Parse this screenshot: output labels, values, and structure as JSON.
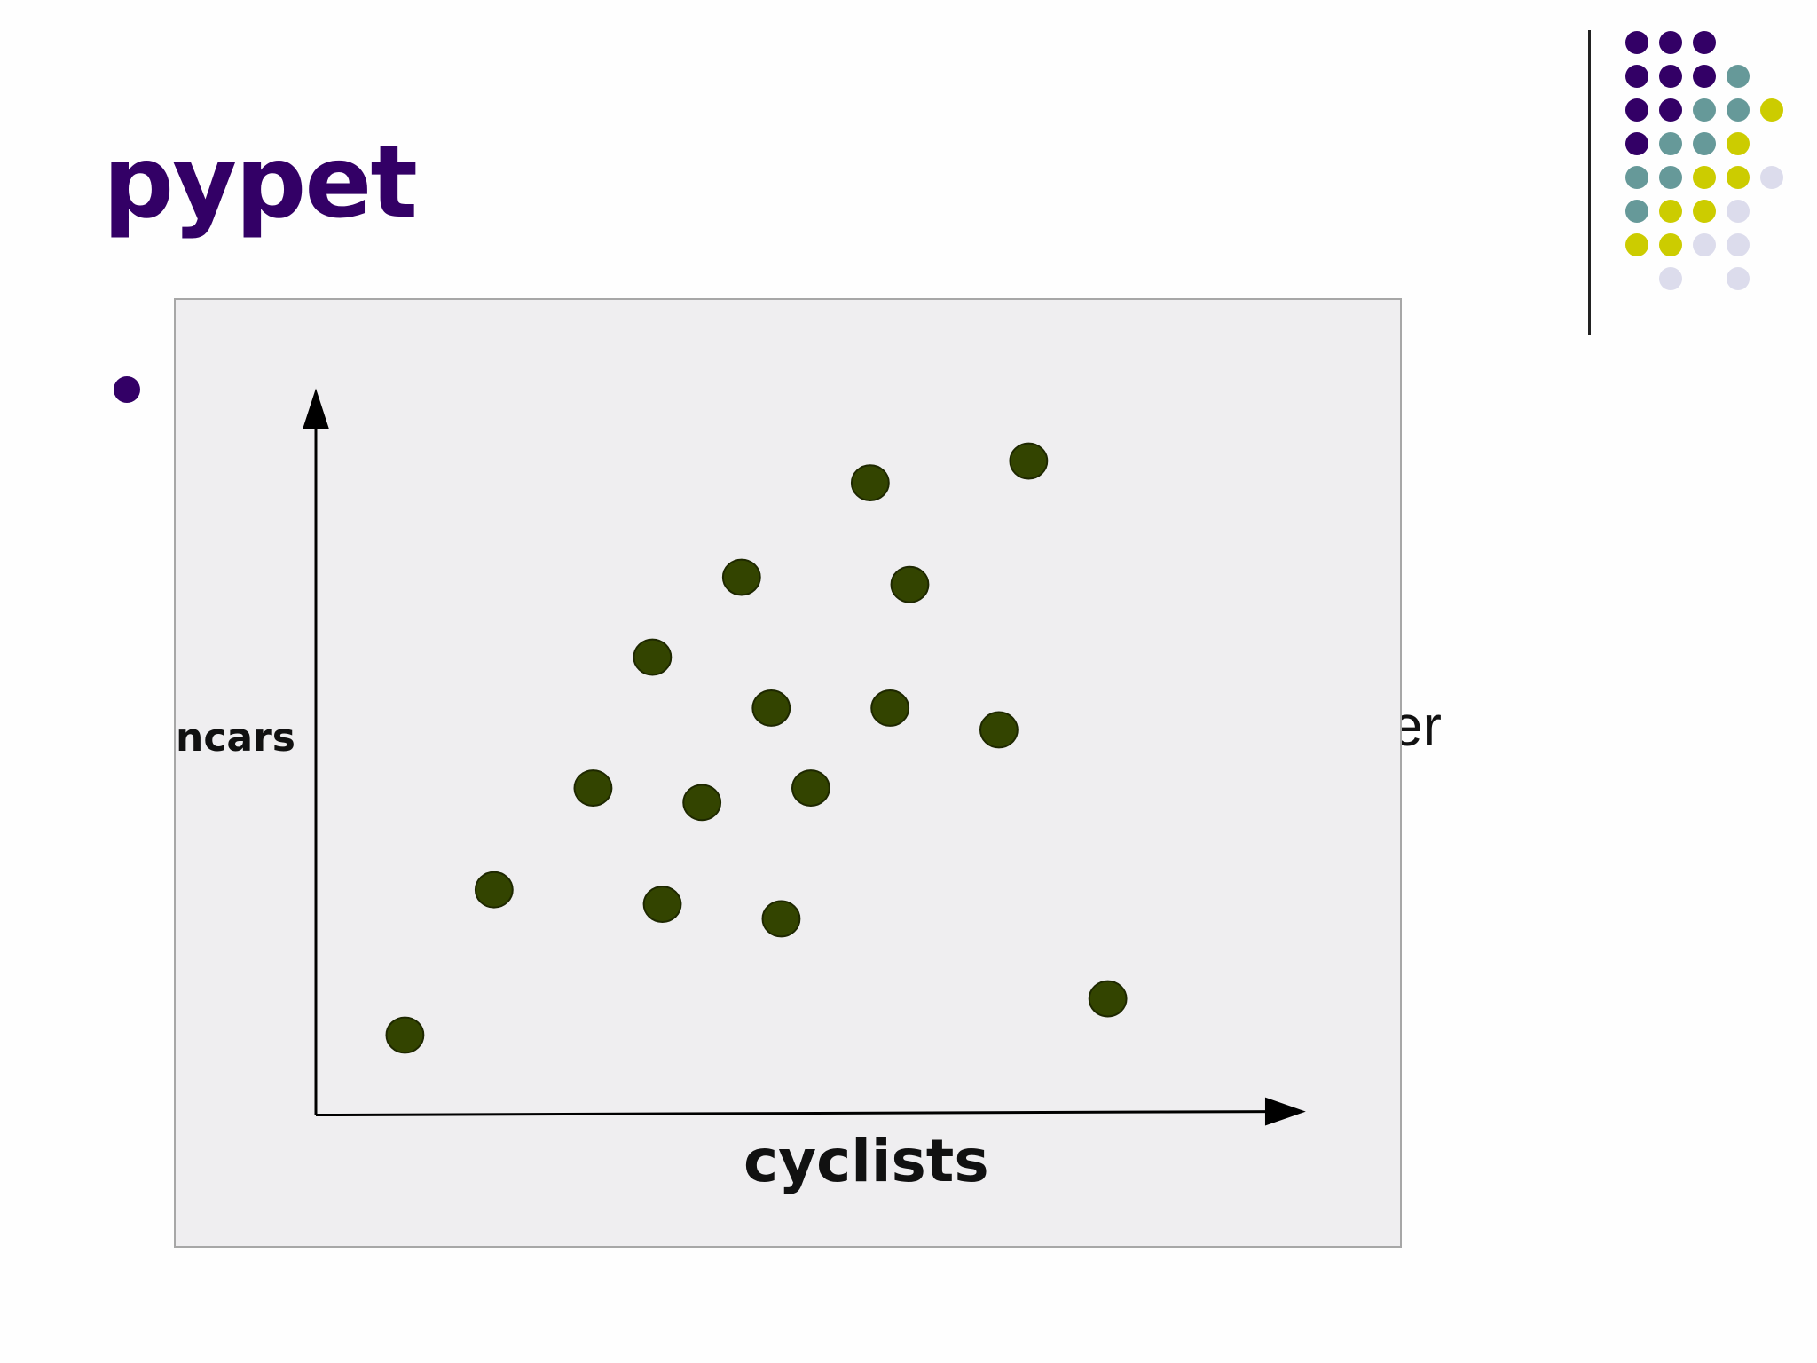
{
  "slide": {
    "title": "pypet",
    "partial_text_a": "̕",
    "partial_text_b": "er"
  },
  "colors": {
    "title": "#330066",
    "bullet": "#330066",
    "points": "#334400",
    "panel": "#efeef0",
    "deco_purple": "#330066",
    "deco_teal": "#669999",
    "deco_yellow": "#cccc00",
    "deco_lavender": "#dcdcec"
  },
  "decoration": {
    "dot_grid": [
      [
        "purple",
        "purple",
        "purple",
        null,
        null
      ],
      [
        "purple",
        "purple",
        "purple",
        "teal",
        null
      ],
      [
        "purple",
        "purple",
        "teal",
        "teal",
        "yellow"
      ],
      [
        "purple",
        "teal",
        "teal",
        "yellow",
        null
      ],
      [
        "teal",
        "teal",
        "yellow",
        "yellow",
        "lavender"
      ],
      [
        "teal",
        "yellow",
        "yellow",
        "lavender",
        null
      ],
      [
        "yellow",
        "yellow",
        "lavender",
        "lavender",
        null
      ],
      [
        null,
        "lavender",
        null,
        "lavender",
        null
      ]
    ]
  },
  "chart_data": {
    "type": "scatter",
    "xlabel": "cyclists",
    "ylabel": "ncars",
    "xlim": [
      0,
      100
    ],
    "ylim": [
      0,
      100
    ],
    "grid": false,
    "axis_ticks": false,
    "points": [
      {
        "x": 9,
        "y": 11
      },
      {
        "x": 18,
        "y": 31
      },
      {
        "x": 28,
        "y": 45
      },
      {
        "x": 34,
        "y": 63
      },
      {
        "x": 35,
        "y": 29
      },
      {
        "x": 39,
        "y": 43
      },
      {
        "x": 43,
        "y": 74
      },
      {
        "x": 46,
        "y": 56
      },
      {
        "x": 47,
        "y": 27
      },
      {
        "x": 50,
        "y": 45
      },
      {
        "x": 56,
        "y": 87
      },
      {
        "x": 58,
        "y": 56
      },
      {
        "x": 60,
        "y": 73
      },
      {
        "x": 69,
        "y": 53
      },
      {
        "x": 72,
        "y": 90
      },
      {
        "x": 80,
        "y": 16
      }
    ]
  }
}
